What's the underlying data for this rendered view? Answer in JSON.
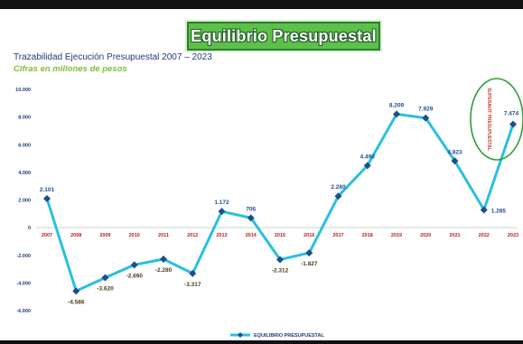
{
  "header": {
    "banner_title": "Equilibrio Presupuestal",
    "subtitle": "Trazabilidad Ejecución Presupuestal 2007 – 2023",
    "units": "Cifras en millones de pesos"
  },
  "annotation": {
    "circle_text": "SUPERAVIT PRESUPUESTAL"
  },
  "colors": {
    "line": "#29c0e0",
    "marker": "#1f4e8c",
    "banner": "#5dc04a",
    "circle": "#2e9e3a",
    "annotation_text": "#c0392b",
    "year_label": "#b22222"
  },
  "chart_data": {
    "type": "line",
    "x": [
      "2007",
      "2008",
      "2009",
      "2010",
      "2011",
      "2012",
      "2013",
      "2014",
      "2015",
      "2016",
      "2017",
      "2018",
      "2019",
      "2020",
      "2021",
      "2022",
      "2023"
    ],
    "series": [
      {
        "name": "EQUILIBRIO PRESUPUESTAL",
        "values": [
          2101,
          -4586,
          -3620,
          -2690,
          -2280,
          -3317,
          1172,
          706,
          -2312,
          -1827,
          2280,
          4490,
          8209,
          7929,
          4823,
          1285,
          7474
        ],
        "labels": [
          "2.101",
          "-4.586",
          "-3.620",
          "-2.690",
          "-2.280",
          "-3.317",
          "1.172",
          "706",
          "-2.312",
          "-1.827",
          "2.280",
          "4.490",
          "8.209",
          "7.929",
          "4.823",
          "1.285",
          "7.474"
        ]
      }
    ],
    "ylim": [
      -6000,
      10000
    ],
    "yticks": [
      10000,
      8000,
      6000,
      4000,
      2000,
      0,
      -2000,
      -4000,
      -6000
    ],
    "ytick_labels": [
      "10.000",
      "8.000",
      "6.000",
      "4.000",
      "2.000",
      "0",
      "-2.000",
      "-4.000",
      "-6.000"
    ],
    "grid": false,
    "legend_position": "bottom-center"
  }
}
